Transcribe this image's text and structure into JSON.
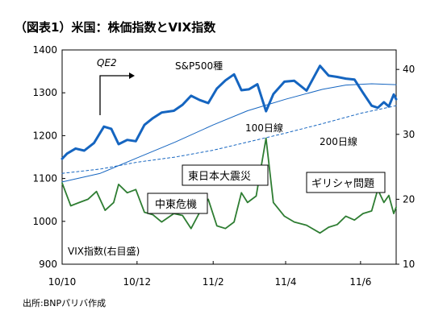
{
  "title": "（図表1）米国：株価指数とVIX指数",
  "source": "出所:BNPパリバ作成",
  "chart_data": {
    "type": "line",
    "title": "（図表1）米国：株価指数とVIX指数",
    "x_ticks": [
      "10/10",
      "10/12",
      "11/2",
      "11/4",
      "11/6"
    ],
    "x_tick_dates": [
      "2010-10-01",
      "2010-12-01",
      "2011-02-01",
      "2011-04-01",
      "2011-06-01"
    ],
    "x_range": [
      "2010-10-01",
      "2011-06-30"
    ],
    "ylim_left": [
      900,
      1400
    ],
    "yticks_left": [
      900,
      1000,
      1100,
      1200,
      1300,
      1400
    ],
    "ylim_right": [
      10,
      43
    ],
    "yticks_right": [
      10,
      20,
      30,
      40
    ],
    "grid": false,
    "series": [
      {
        "name": "S&P500種",
        "axis": "left",
        "color": "#1565c0",
        "style": "solid-thick",
        "points": [
          [
            "2010-10-01",
            1146
          ],
          [
            "2010-10-05",
            1158
          ],
          [
            "2010-10-12",
            1170
          ],
          [
            "2010-10-19",
            1165
          ],
          [
            "2010-10-27",
            1183
          ],
          [
            "2010-11-04",
            1221
          ],
          [
            "2010-11-10",
            1216
          ],
          [
            "2010-11-16",
            1180
          ],
          [
            "2010-11-23",
            1190
          ],
          [
            "2010-11-30",
            1187
          ],
          [
            "2010-12-07",
            1225
          ],
          [
            "2010-12-14",
            1241
          ],
          [
            "2010-12-21",
            1254
          ],
          [
            "2010-12-31",
            1258
          ],
          [
            "2011-01-07",
            1272
          ],
          [
            "2011-01-14",
            1293
          ],
          [
            "2011-01-21",
            1283
          ],
          [
            "2011-01-28",
            1276
          ],
          [
            "2011-02-04",
            1310
          ],
          [
            "2011-02-11",
            1329
          ],
          [
            "2011-02-18",
            1343
          ],
          [
            "2011-02-24",
            1306
          ],
          [
            "2011-03-02",
            1308
          ],
          [
            "2011-03-09",
            1320
          ],
          [
            "2011-03-16",
            1257
          ],
          [
            "2011-03-22",
            1297
          ],
          [
            "2011-03-31",
            1326
          ],
          [
            "2011-04-08",
            1328
          ],
          [
            "2011-04-18",
            1305
          ],
          [
            "2011-04-29",
            1363
          ],
          [
            "2011-05-06",
            1340
          ],
          [
            "2011-05-13",
            1337
          ],
          [
            "2011-05-20",
            1333
          ],
          [
            "2011-05-27",
            1331
          ],
          [
            "2011-06-03",
            1300
          ],
          [
            "2011-06-10",
            1270
          ],
          [
            "2011-06-15",
            1265
          ],
          [
            "2011-06-20",
            1278
          ],
          [
            "2011-06-24",
            1268
          ],
          [
            "2011-06-28",
            1296
          ],
          [
            "2011-06-30",
            1285
          ]
        ]
      },
      {
        "name": "100日線",
        "axis": "left",
        "color": "#1565c0",
        "style": "solid-thin",
        "points": [
          [
            "2010-10-01",
            1092
          ],
          [
            "2010-11-01",
            1112
          ],
          [
            "2010-12-01",
            1148
          ],
          [
            "2011-01-01",
            1185
          ],
          [
            "2011-02-01",
            1225
          ],
          [
            "2011-03-01",
            1258
          ],
          [
            "2011-04-01",
            1285
          ],
          [
            "2011-05-01",
            1308
          ],
          [
            "2011-05-20",
            1318
          ],
          [
            "2011-06-10",
            1321
          ],
          [
            "2011-06-30",
            1319
          ]
        ]
      },
      {
        "name": "200日線",
        "axis": "left",
        "color": "#1565c0",
        "style": "dashed",
        "points": [
          [
            "2010-10-01",
            1112
          ],
          [
            "2010-11-01",
            1122
          ],
          [
            "2010-12-01",
            1138
          ],
          [
            "2011-01-01",
            1150
          ],
          [
            "2011-02-01",
            1166
          ],
          [
            "2011-03-01",
            1185
          ],
          [
            "2011-04-01",
            1206
          ],
          [
            "2011-05-01",
            1228
          ],
          [
            "2011-06-01",
            1252
          ],
          [
            "2011-06-30",
            1270
          ]
        ]
      },
      {
        "name": "VIX指数(右目盛)",
        "axis": "right",
        "color": "#2e7d32",
        "style": "solid",
        "points": [
          [
            "2010-10-01",
            22.5
          ],
          [
            "2010-10-08",
            19.0
          ],
          [
            "2010-10-15",
            19.5
          ],
          [
            "2010-10-22",
            20.0
          ],
          [
            "2010-10-29",
            21.2
          ],
          [
            "2010-11-05",
            18.3
          ],
          [
            "2010-11-12",
            19.5
          ],
          [
            "2010-11-16",
            22.3
          ],
          [
            "2010-11-23",
            21.0
          ],
          [
            "2010-11-30",
            21.5
          ],
          [
            "2010-12-07",
            18.0
          ],
          [
            "2010-12-14",
            17.6
          ],
          [
            "2010-12-21",
            16.5
          ],
          [
            "2010-12-31",
            17.8
          ],
          [
            "2011-01-07",
            17.5
          ],
          [
            "2011-01-14",
            15.5
          ],
          [
            "2011-01-21",
            18.0
          ],
          [
            "2011-01-28",
            20.0
          ],
          [
            "2011-02-04",
            15.9
          ],
          [
            "2011-02-11",
            15.5
          ],
          [
            "2011-02-18",
            16.5
          ],
          [
            "2011-02-24",
            21.0
          ],
          [
            "2011-03-01",
            19.5
          ],
          [
            "2011-03-08",
            20.5
          ],
          [
            "2011-03-16",
            29.4
          ],
          [
            "2011-03-22",
            19.5
          ],
          [
            "2011-03-31",
            17.4
          ],
          [
            "2011-04-08",
            16.5
          ],
          [
            "2011-04-18",
            16.0
          ],
          [
            "2011-04-29",
            14.8
          ],
          [
            "2011-05-06",
            15.7
          ],
          [
            "2011-05-13",
            16.1
          ],
          [
            "2011-05-20",
            17.4
          ],
          [
            "2011-05-27",
            16.8
          ],
          [
            "2011-06-03",
            17.8
          ],
          [
            "2011-06-10",
            18.2
          ],
          [
            "2011-06-15",
            21.5
          ],
          [
            "2011-06-20",
            19.5
          ],
          [
            "2011-06-24",
            20.6
          ],
          [
            "2011-06-28",
            17.8
          ],
          [
            "2011-06-30",
            18.8
          ]
        ]
      }
    ],
    "annotations": [
      {
        "text": "QE2",
        "date": "2010-11-04",
        "kind": "arrow-label"
      },
      {
        "text": "S&P500種",
        "kind": "series-label"
      },
      {
        "text": "100日線",
        "kind": "series-label"
      },
      {
        "text": "200日線",
        "kind": "series-label"
      },
      {
        "text": "VIX指数(右目盛)",
        "kind": "series-label"
      },
      {
        "text": "中東危機",
        "date": "2011-02-22",
        "kind": "boxed"
      },
      {
        "text": "東日本大震災",
        "date": "2011-03-14",
        "kind": "boxed"
      },
      {
        "text": "ギリシャ問題",
        "date": "2011-06-15",
        "kind": "boxed"
      }
    ]
  }
}
